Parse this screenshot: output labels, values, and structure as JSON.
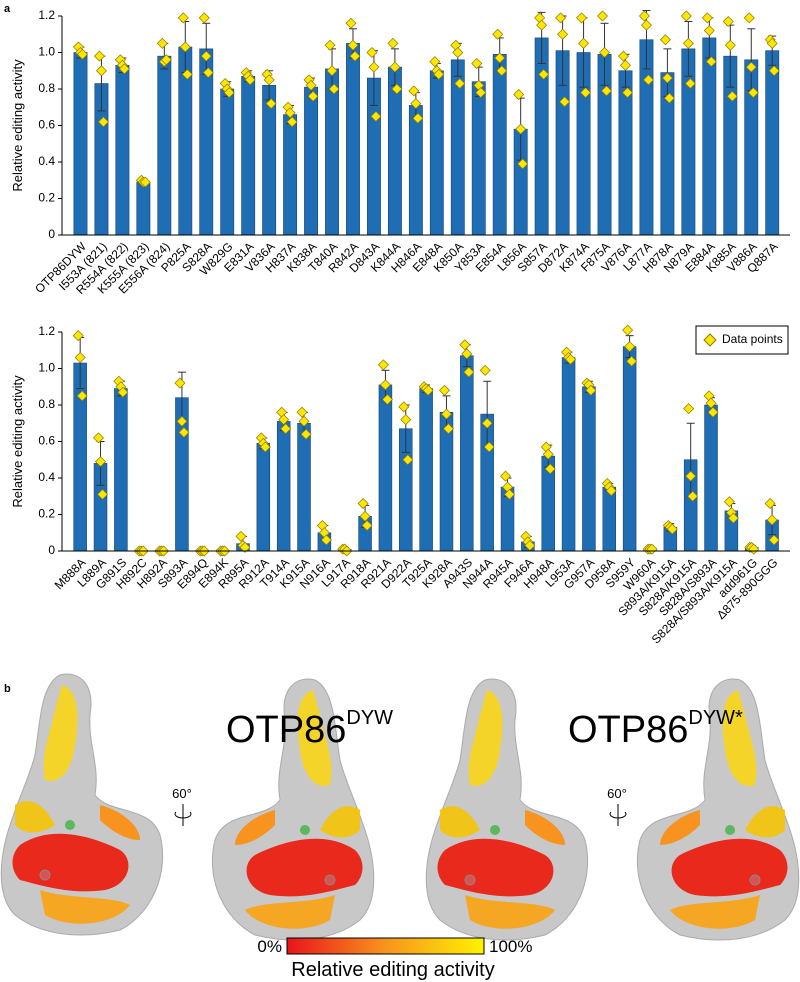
{
  "chart_data": [
    {
      "type": "bar",
      "panel_label": "a",
      "ylabel": "Relative editing activity",
      "color": "#1f6db3",
      "error_color": "#333333",
      "point_color": "#ffe600",
      "ylim": [
        0,
        1.2
      ],
      "yticks": [
        0,
        0.2,
        0.4,
        0.6,
        0.8,
        {
          "value": 1,
          "label": "1.0"
        },
        1.2
      ],
      "categories": [
        "OTP86DYW",
        "I553A (821)",
        "R554A (822)",
        "K555A (823)",
        "E556A (824)",
        "P825A",
        "S828A",
        "W829G",
        "E831A",
        "V836A",
        "H837A",
        "K838A",
        "T840A",
        "R842A",
        "D843A",
        "K844A",
        "H846A",
        "E848A",
        "K850A",
        "Y853A",
        "E854A",
        "L856A",
        "S857A",
        "D872A",
        "K874A",
        "F875A",
        "V876A",
        "L877A",
        "H878A",
        "N879A",
        "E884A",
        "K885A",
        "V886A",
        "Q887A"
      ],
      "values": [
        1.0,
        0.83,
        0.93,
        0.29,
        0.98,
        1.03,
        1.02,
        0.8,
        0.87,
        0.82,
        0.66,
        0.81,
        0.91,
        1.05,
        0.86,
        0.92,
        0.71,
        0.9,
        0.96,
        0.84,
        0.99,
        0.58,
        1.08,
        1.01,
        1.0,
        0.99,
        0.9,
        1.07,
        0.89,
        1.02,
        1.08,
        0.98,
        0.96,
        1.01
      ],
      "errors": [
        0.03,
        0.15,
        0.04,
        0.01,
        0.07,
        0.14,
        0.14,
        0.04,
        0.03,
        0.08,
        0.05,
        0.05,
        0.11,
        0.08,
        0.15,
        0.1,
        0.07,
        0.04,
        0.09,
        0.08,
        0.09,
        0.17,
        0.14,
        0.19,
        0.19,
        0.17,
        0.09,
        0.16,
        0.13,
        0.15,
        0.11,
        0.17,
        0.17,
        0.08
      ],
      "points": [
        [
          1.03,
          1.0,
          0.99
        ],
        [
          0.98,
          0.9,
          0.62
        ],
        [
          0.96,
          0.93,
          0.91
        ],
        [
          0.3,
          0.29,
          0.29
        ],
        [
          1.05,
          0.95,
          0.96
        ],
        [
          1.19,
          1.03,
          0.88
        ],
        [
          1.19,
          0.98,
          0.89
        ],
        [
          0.83,
          0.8,
          0.78
        ],
        [
          0.89,
          0.87,
          0.85
        ],
        [
          0.88,
          0.85,
          0.72
        ],
        [
          0.7,
          0.67,
          0.62
        ],
        [
          0.85,
          0.82,
          0.76
        ],
        [
          1.04,
          0.9,
          0.8
        ],
        [
          1.16,
          1.04,
          0.98
        ],
        [
          1.0,
          0.92,
          0.65
        ],
        [
          1.05,
          0.92,
          0.8
        ],
        [
          0.79,
          0.72,
          0.64
        ],
        [
          0.95,
          0.9,
          0.88
        ],
        [
          1.04,
          1.0,
          0.83
        ],
        [
          0.94,
          0.82,
          0.78
        ],
        [
          1.1,
          0.97,
          0.9
        ],
        [
          0.77,
          0.58,
          0.39
        ],
        [
          1.19,
          1.15,
          0.88
        ],
        [
          1.19,
          1.1,
          0.73
        ],
        [
          1.19,
          1.05,
          0.78
        ],
        [
          1.2,
          1.0,
          0.79
        ],
        [
          0.98,
          0.93,
          0.78
        ],
        [
          1.2,
          1.15,
          0.85
        ],
        [
          1.07,
          0.86,
          0.75
        ],
        [
          1.2,
          1.05,
          0.83
        ],
        [
          1.19,
          1.12,
          0.95
        ],
        [
          1.17,
          1.04,
          0.76
        ],
        [
          1.19,
          0.92,
          0.78
        ],
        [
          1.07,
          1.05,
          0.9
        ]
      ]
    },
    {
      "type": "bar",
      "ylabel": "Relative editing activity",
      "color": "#1f6db3",
      "error_color": "#333333",
      "point_color": "#ffe600",
      "legend": "Data points",
      "legend_position": "upper right",
      "ylim": [
        0,
        1.2
      ],
      "yticks": [
        0,
        0.2,
        0.4,
        0.6,
        0.8,
        {
          "value": 1,
          "label": "1.0"
        },
        1.2
      ],
      "categories": [
        "M888A",
        "L889A",
        "G891S",
        "H892C",
        "H892A",
        "S893A",
        "E894Q",
        "E894K",
        "R895A",
        "R912A",
        "T914A",
        "K915A",
        "N916A",
        "L917A",
        "R918A",
        "R921A",
        "D922A",
        "T925A",
        "K928A",
        "A943S",
        "N944A",
        "R945A",
        "F946A",
        "H948A",
        "L953A",
        "G957A",
        "D958A",
        "S959Y",
        "W960A",
        "S893A/K915A",
        "S828A/K915A",
        "S828A/S893A",
        "S828A/S893A/K915A",
        "add961G",
        "Δ875-890GGG"
      ],
      "values": [
        1.03,
        0.48,
        0.89,
        0,
        0,
        0.84,
        0,
        0,
        0.04,
        0.59,
        0.71,
        0.7,
        0.1,
        0.01,
        0.19,
        0.91,
        0.67,
        0.89,
        0.76,
        1.07,
        0.75,
        0.35,
        0.05,
        0.52,
        1.06,
        0.9,
        0.35,
        1.12,
        0.01,
        0.13,
        0.5,
        0.8,
        0.22,
        0.02,
        0.17
      ],
      "errors": [
        0.14,
        0.12,
        0.04,
        0,
        0,
        0.14,
        0,
        0,
        0.04,
        0.03,
        0.05,
        0.06,
        0.04,
        0.01,
        0.06,
        0.08,
        0.13,
        0.02,
        0.09,
        0.06,
        0.18,
        0.05,
        0.03,
        0.06,
        0.03,
        0.03,
        0.02,
        0.06,
        0.01,
        0.02,
        0.2,
        0.04,
        0.04,
        0.01,
        0.08
      ],
      "points": [
        [
          1.18,
          1.06,
          0.85
        ],
        [
          0.62,
          0.49,
          0.31
        ],
        [
          0.93,
          0.9,
          0.87
        ],
        [
          0,
          0,
          0
        ],
        [
          0,
          0,
          0
        ],
        [
          0.92,
          0.71,
          0.65
        ],
        [
          0,
          0,
          0
        ],
        [
          0,
          0,
          0
        ],
        [
          0.08,
          0.03,
          0.02
        ],
        [
          0.62,
          0.59,
          0.57
        ],
        [
          0.76,
          0.72,
          0.67
        ],
        [
          0.76,
          0.71,
          0.64
        ],
        [
          0.14,
          0.1,
          0.06
        ],
        [
          0.01,
          0.01,
          0
        ],
        [
          0.26,
          0.19,
          0.14
        ],
        [
          1.02,
          0.91,
          0.83
        ],
        [
          0.79,
          0.72,
          0.5
        ],
        [
          0.9,
          0.89,
          0.88
        ],
        [
          0.88,
          0.75,
          0.67
        ],
        [
          1.13,
          1.08,
          0.98
        ],
        [
          0.99,
          0.7,
          0.57
        ],
        [
          0.41,
          0.35,
          0.31
        ],
        [
          0.08,
          0.05,
          0.03
        ],
        [
          0.57,
          0.53,
          0.45
        ],
        [
          1.09,
          1.06,
          1.05
        ],
        [
          0.92,
          0.91,
          0.88
        ],
        [
          0.37,
          0.35,
          0.33
        ],
        [
          1.21,
          1.12,
          1.04
        ],
        [
          0.01,
          0.01,
          0.01
        ],
        [
          0.14,
          0.13,
          0.12
        ],
        [
          0.78,
          0.41,
          0.3
        ],
        [
          0.85,
          0.81,
          0.76
        ],
        [
          0.27,
          0.21,
          0.18
        ],
        [
          0.02,
          0.02,
          0.01
        ],
        [
          0.26,
          0.17,
          0.06
        ]
      ]
    }
  ],
  "panel_b": {
    "label": "b",
    "left_title": "OTP86",
    "left_sup": "DYW",
    "right_title": "OTP86",
    "right_sup": "DYW*",
    "rotation_left": "60°",
    "rotation_right": "60°",
    "colorbar": {
      "min_label": "0%",
      "max_label": "100%",
      "label": "Relative editing activity"
    }
  }
}
